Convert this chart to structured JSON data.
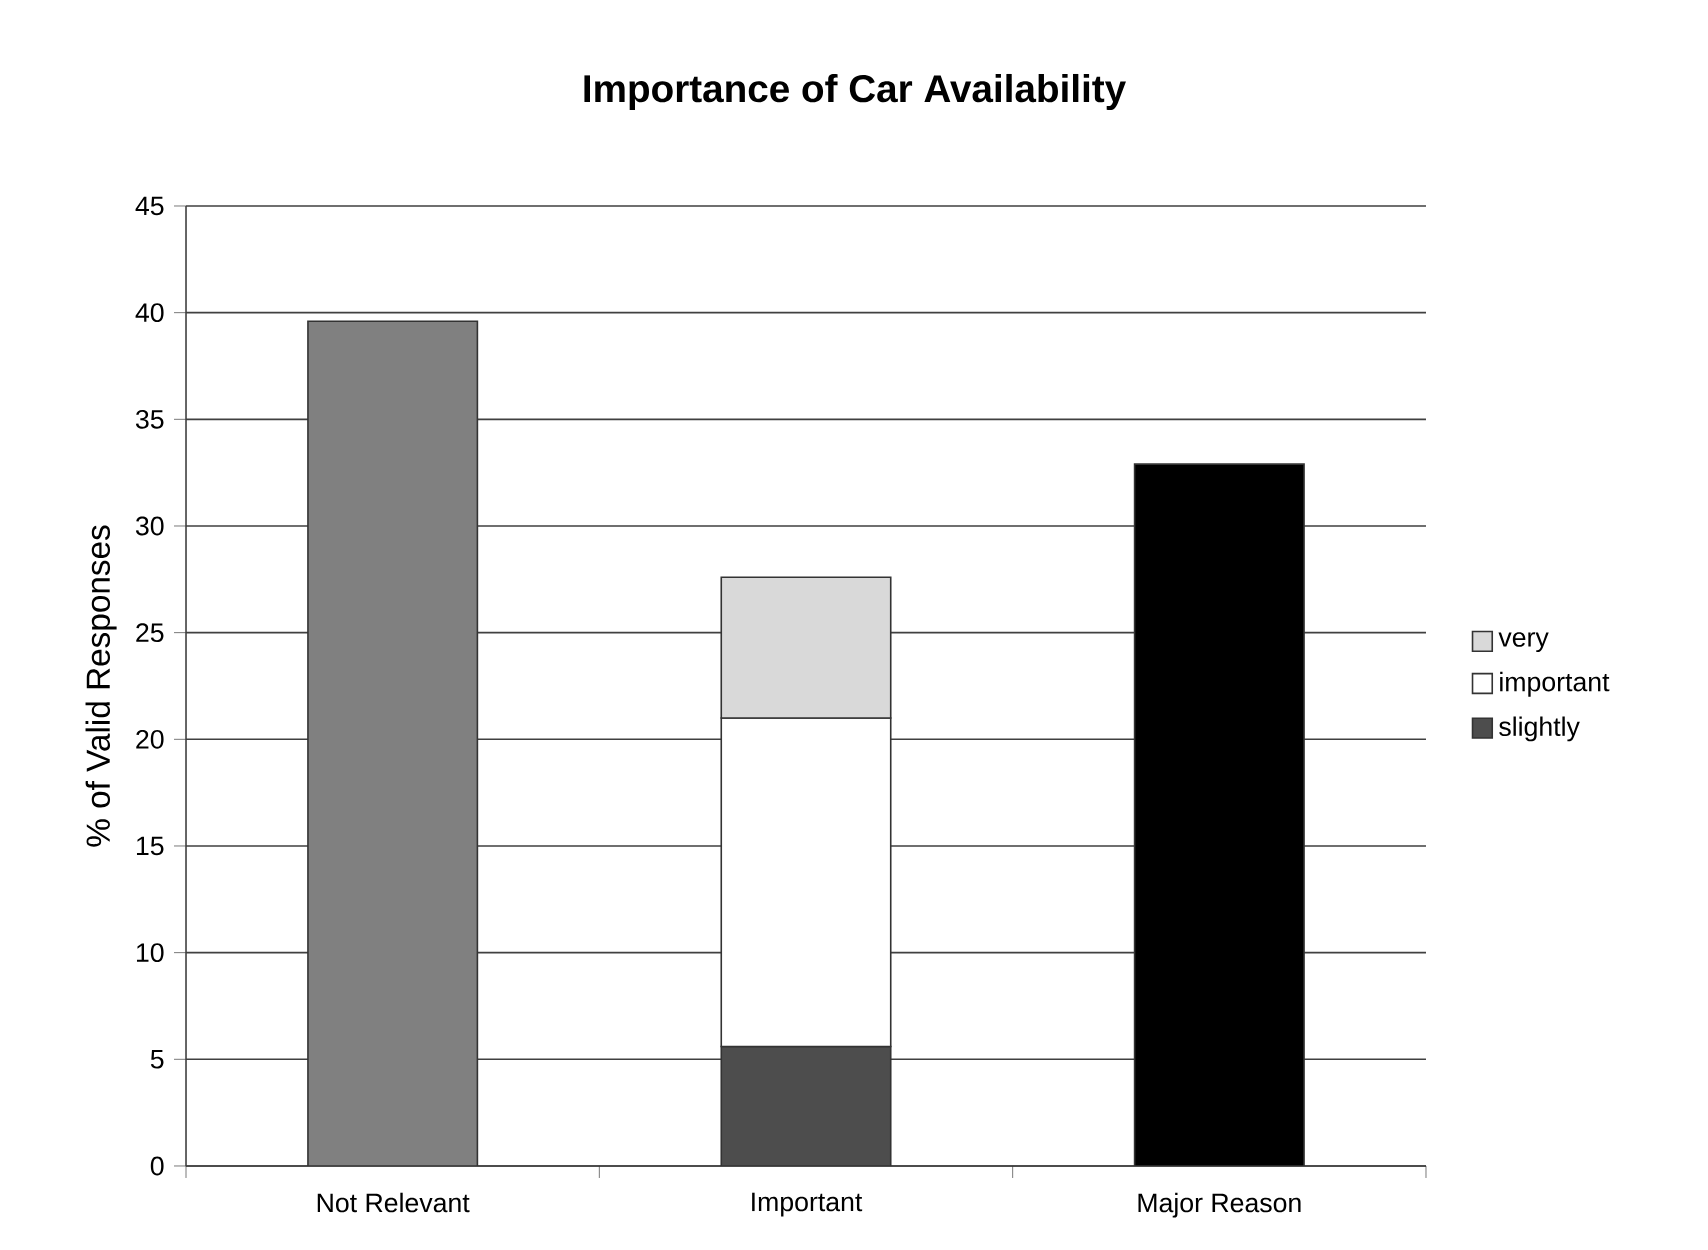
{
  "chart_data": {
    "type": "bar",
    "stacked": true,
    "title": "Importance of Car Availability",
    "ylabel": "% of Valid Responses",
    "categories": [
      "Not Relevant",
      "Important",
      "Major Reason"
    ],
    "series": [
      {
        "color": "#808080",
        "values": [
          39.6,
          null,
          null
        ]
      },
      {
        "name": "slightly",
        "color": "#4d4d4d",
        "values": [
          null,
          5.6,
          null
        ]
      },
      {
        "name": "important",
        "color": "#ffffff",
        "values": [
          null,
          15.4,
          null
        ]
      },
      {
        "name": "very",
        "color": "#d9d9d9",
        "values": [
          null,
          6.6,
          null
        ]
      },
      {
        "color": "#000000",
        "values": [
          null,
          null,
          32.9
        ]
      }
    ],
    "ylim": [
      0,
      45
    ],
    "yticks": [
      0,
      5,
      10,
      15,
      20,
      25,
      30,
      35,
      40,
      45
    ],
    "grid": "y",
    "legend": "right"
  }
}
